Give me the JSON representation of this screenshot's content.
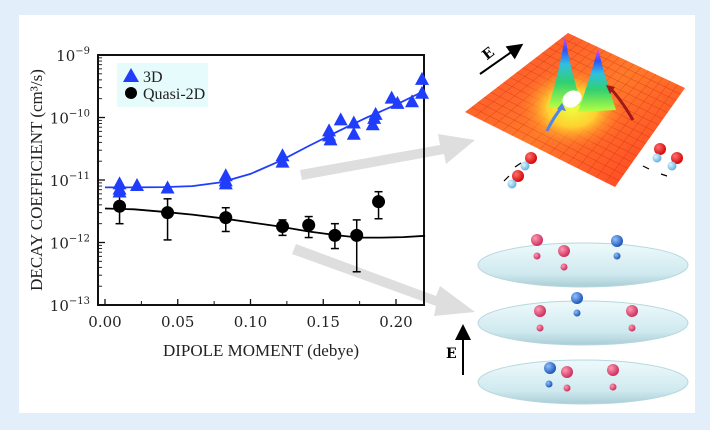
{
  "chart_data": {
    "type": "scatter",
    "title": "",
    "xlabel": "DIPOLE MOMENT (debye)",
    "ylabel": "DECAY COEFFICIENT (cm³/s)",
    "xlim": [
      -0.005,
      0.22
    ],
    "ylim": [
      1e-13,
      1e-09
    ],
    "yscale": "log",
    "x_ticks": [
      {
        "value": 0.0,
        "label": "0.00"
      },
      {
        "value": 0.05,
        "label": "0.05"
      },
      {
        "value": 0.1,
        "label": "0.10"
      },
      {
        "value": 0.15,
        "label": "0.15"
      },
      {
        "value": 0.2,
        "label": "0.20"
      }
    ],
    "y_ticks": [
      {
        "value": 1e-09,
        "base": "10",
        "exp": "−9"
      },
      {
        "value": 1e-10,
        "base": "10",
        "exp": "−10"
      },
      {
        "value": 1e-11,
        "base": "10",
        "exp": "−11"
      },
      {
        "value": 1e-12,
        "base": "10",
        "exp": "−12"
      },
      {
        "value": 1e-13,
        "base": "10",
        "exp": "−13"
      }
    ],
    "grid": false,
    "legend": {
      "position": "top-left",
      "background": "#e6fbfb"
    },
    "series": [
      {
        "name": "3D",
        "marker": "triangle",
        "color": "#1f3dfa",
        "points": [
          {
            "x": 0.01,
            "y": 8.5e-12
          },
          {
            "x": 0.01,
            "y": 7e-12
          },
          {
            "x": 0.01,
            "y": 6.3e-12
          },
          {
            "x": 0.022,
            "y": 8e-12
          },
          {
            "x": 0.043,
            "y": 7.3e-12
          },
          {
            "x": 0.083,
            "y": 1.15e-11
          },
          {
            "x": 0.083,
            "y": 9.5e-12
          },
          {
            "x": 0.083,
            "y": 8.5e-12
          },
          {
            "x": 0.122,
            "y": 2.4e-11
          },
          {
            "x": 0.122,
            "y": 1.9e-11
          },
          {
            "x": 0.154,
            "y": 6e-11
          },
          {
            "x": 0.154,
            "y": 5e-11
          },
          {
            "x": 0.155,
            "y": 4.3e-11
          },
          {
            "x": 0.162,
            "y": 9e-11
          },
          {
            "x": 0.171,
            "y": 8e-11
          },
          {
            "x": 0.171,
            "y": 5.3e-11
          },
          {
            "x": 0.184,
            "y": 7.5e-11
          },
          {
            "x": 0.185,
            "y": 9.5e-11
          },
          {
            "x": 0.186,
            "y": 1.1e-10
          },
          {
            "x": 0.197,
            "y": 2e-10
          },
          {
            "x": 0.201,
            "y": 1.65e-10
          },
          {
            "x": 0.211,
            "y": 1.75e-10
          },
          {
            "x": 0.218,
            "y": 2.4e-10
          },
          {
            "x": 0.22,
            "y": 4e-10
          }
        ],
        "fit": [
          {
            "x": 0.0,
            "y": 7.6e-12
          },
          {
            "x": 0.02,
            "y": 7.6e-12
          },
          {
            "x": 0.04,
            "y": 7.7e-12
          },
          {
            "x": 0.06,
            "y": 8e-12
          },
          {
            "x": 0.08,
            "y": 9.2e-12
          },
          {
            "x": 0.1,
            "y": 1.25e-11
          },
          {
            "x": 0.12,
            "y": 2e-11
          },
          {
            "x": 0.14,
            "y": 3.5e-11
          },
          {
            "x": 0.16,
            "y": 6e-11
          },
          {
            "x": 0.18,
            "y": 1e-10
          },
          {
            "x": 0.2,
            "y": 1.6e-10
          },
          {
            "x": 0.22,
            "y": 2.7e-10
          }
        ]
      },
      {
        "name": "Quasi-2D",
        "marker": "circle",
        "color": "#000000",
        "points": [
          {
            "x": 0.01,
            "y": 3.8e-12,
            "ylo": 2e-12,
            "yhi": 5.6e-12
          },
          {
            "x": 0.043,
            "y": 3e-12,
            "ylo": 1.1e-12,
            "yhi": 5e-12
          },
          {
            "x": 0.083,
            "y": 2.5e-12,
            "ylo": 1.5e-12,
            "yhi": 3.6e-12
          },
          {
            "x": 0.122,
            "y": 1.8e-12,
            "ylo": 1.3e-12,
            "yhi": 2.3e-12
          },
          {
            "x": 0.14,
            "y": 1.9e-12,
            "ylo": 1.2e-12,
            "yhi": 2.6e-12
          },
          {
            "x": 0.158,
            "y": 1.3e-12,
            "ylo": 8e-13,
            "yhi": 2e-12
          },
          {
            "x": 0.173,
            "y": 1.3e-12,
            "ylo": 3.4e-13,
            "yhi": 2.3e-12
          },
          {
            "x": 0.188,
            "y": 4.5e-12,
            "ylo": 2.4e-12,
            "yhi": 6.5e-12
          }
        ],
        "fit": [
          {
            "x": 0.0,
            "y": 3.5e-12
          },
          {
            "x": 0.02,
            "y": 3.4e-12
          },
          {
            "x": 0.04,
            "y": 3.1e-12
          },
          {
            "x": 0.06,
            "y": 2.8e-12
          },
          {
            "x": 0.08,
            "y": 2.45e-12
          },
          {
            "x": 0.1,
            "y": 2.1e-12
          },
          {
            "x": 0.12,
            "y": 1.8e-12
          },
          {
            "x": 0.14,
            "y": 1.5e-12
          },
          {
            "x": 0.16,
            "y": 1.3e-12
          },
          {
            "x": 0.175,
            "y": 1.2e-12
          },
          {
            "x": 0.19,
            "y": 1.2e-12
          },
          {
            "x": 0.205,
            "y": 1.22e-12
          },
          {
            "x": 0.22,
            "y": 1.28e-12
          }
        ]
      }
    ]
  },
  "illustrations": {
    "surface_plot": {
      "field_label": "E",
      "description": "3D collision potential surface"
    },
    "layers": {
      "field_label": "E",
      "layer_count": 3,
      "description": "Quasi-2D optical lattice layers"
    }
  },
  "colors": {
    "background": "#e3eefb",
    "panel": "#ffffff",
    "series_3d": "#1f3dfa",
    "series_2d": "#000000",
    "arrow": "#dcdcdc"
  }
}
